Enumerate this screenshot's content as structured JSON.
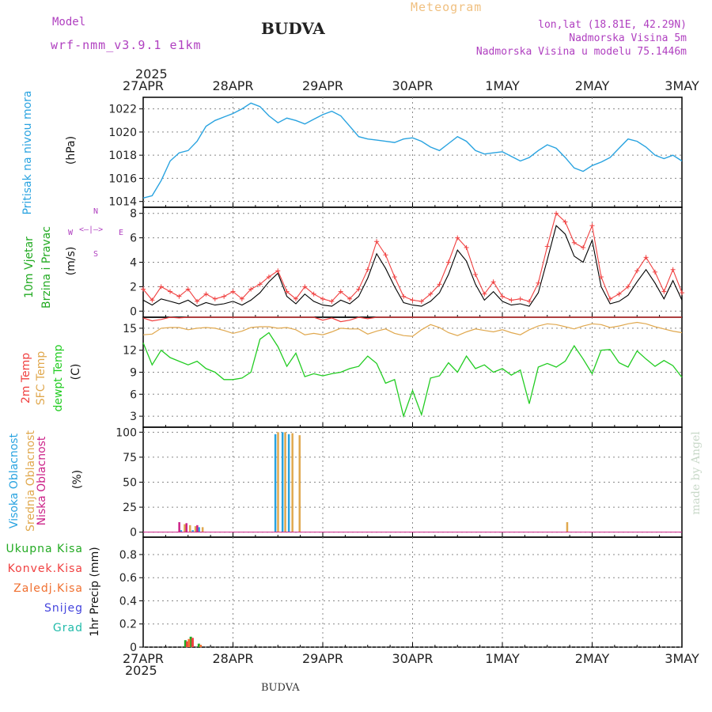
{
  "header": {
    "model_label": "Model",
    "model_name": "wrf-nmm_v3.9.1 e1km",
    "station": "BUDVA",
    "meteogram_label": "Meteogram",
    "coords": "lon,lat (18.81E, 42.29N)",
    "elevation": "Nadmorska Visina 5m",
    "model_elevation": "Nadmorska Visina u modelu 75.1446m",
    "footer_station": "BUDVA",
    "credit": "made by Angel"
  },
  "colors": {
    "pressure": "#29a3e0",
    "temp2m": "#f04040",
    "sfc_temp": "#e0a84e",
    "dewpt": "#22cc22",
    "wind_label": "#22aa22",
    "wind_speed": "#000000",
    "wind_gust": "#f04040",
    "cloud_high": "#29a3e0",
    "cloud_mid": "#e0a84e",
    "cloud_low": "#cc2288",
    "model_text": "#b040c0",
    "meteogram_text": "#f0c080"
  },
  "axes": {
    "top_year": "2025",
    "bottom_year": "2025",
    "dates": [
      "27APR",
      "28APR",
      "29APR",
      "30APR",
      "1MAY",
      "2MAY",
      "3MAY"
    ]
  },
  "chart_data": [
    {
      "type": "line",
      "panel": "pressure",
      "label_left": "Pritisak na nivou mora",
      "ylabel": "(hPa)",
      "ylim": [
        1013.5,
        1023
      ],
      "yticks": [
        1014,
        1016,
        1018,
        1020,
        1022
      ],
      "x_days": [
        0,
        0.1,
        0.2,
        0.3,
        0.4,
        0.5,
        0.6,
        0.7,
        0.8,
        0.9,
        1.0,
        1.1,
        1.2,
        1.3,
        1.4,
        1.5,
        1.6,
        1.7,
        1.8,
        1.9,
        2.0,
        2.1,
        2.2,
        2.3,
        2.4,
        2.5,
        2.6,
        2.7,
        2.8,
        2.9,
        3.0,
        3.1,
        3.2,
        3.3,
        3.4,
        3.5,
        3.6,
        3.7,
        3.8,
        3.9,
        4.0,
        4.1,
        4.2,
        4.3,
        4.4,
        4.5,
        4.6,
        4.7,
        4.8,
        4.9,
        5.0,
        5.1,
        5.2,
        5.3,
        5.4,
        5.5,
        5.6,
        5.7,
        5.8,
        5.9,
        6.0
      ],
      "series": [
        {
          "values": [
            1014.3,
            1014.5,
            1015.8,
            1017.5,
            1018.2,
            1018.4,
            1019.2,
            1020.5,
            1021.0,
            1021.3,
            1021.6,
            1022.0,
            1022.5,
            1022.2,
            1021.4,
            1020.8,
            1021.2,
            1021.0,
            1020.7,
            1021.1,
            1021.5,
            1021.8,
            1021.4,
            1020.5,
            1019.6,
            1019.4,
            1019.3,
            1019.2,
            1019.1,
            1019.4,
            1019.5,
            1019.2,
            1018.7,
            1018.4,
            1019.0,
            1019.6,
            1019.2,
            1018.4,
            1018.1,
            1018.2,
            1018.3,
            1017.9,
            1017.5,
            1017.8,
            1018.4,
            1018.9,
            1018.6,
            1017.8,
            1016.9,
            1016.6,
            1017.1,
            1017.4,
            1017.8,
            1018.6,
            1019.4,
            1019.2,
            1018.7,
            1018.0,
            1017.7,
            1018.0,
            1017.5
          ]
        }
      ]
    },
    {
      "type": "line",
      "panel": "wind",
      "label_left_1": "10m Vjetar",
      "label_left_2": "Brzina i Pravac",
      "ylabel": "(m/s)",
      "compass_n": "N",
      "compass_e": "E",
      "compass_w": "W",
      "compass_s": "S",
      "ylim": [
        -0.5,
        8.5
      ],
      "yticks": [
        0,
        2,
        4,
        6,
        8
      ],
      "x_days": [
        0,
        0.1,
        0.2,
        0.3,
        0.4,
        0.5,
        0.6,
        0.7,
        0.8,
        0.9,
        1.0,
        1.1,
        1.2,
        1.3,
        1.4,
        1.5,
        1.6,
        1.7,
        1.8,
        1.9,
        2.0,
        2.1,
        2.2,
        2.3,
        2.4,
        2.5,
        2.6,
        2.7,
        2.8,
        2.9,
        3.0,
        3.1,
        3.2,
        3.3,
        3.4,
        3.5,
        3.6,
        3.7,
        3.8,
        3.9,
        4.0,
        4.1,
        4.2,
        4.3,
        4.4,
        4.5,
        4.6,
        4.7,
        4.8,
        4.9,
        5.0,
        5.1,
        5.2,
        5.3,
        5.4,
        5.5,
        5.6,
        5.7,
        5.8,
        5.9,
        6.0
      ],
      "series": [
        {
          "name": "speed",
          "values": [
            0.9,
            0.5,
            1.0,
            0.8,
            0.6,
            0.9,
            0.4,
            0.7,
            0.5,
            0.6,
            0.8,
            0.5,
            0.9,
            1.5,
            2.4,
            3.1,
            1.2,
            0.6,
            1.4,
            0.8,
            0.5,
            0.4,
            0.9,
            0.6,
            1.2,
            2.7,
            4.7,
            3.5,
            2.0,
            0.7,
            0.5,
            0.4,
            0.8,
            1.5,
            3.0,
            5.0,
            4.1,
            2.2,
            0.9,
            1.6,
            0.8,
            0.5,
            0.6,
            0.4,
            1.5,
            4.2,
            7.0,
            6.3,
            4.5,
            4.0,
            5.8,
            2.0,
            0.6,
            0.8,
            1.3,
            2.4,
            3.4,
            2.3,
            1.0,
            2.5,
            0.9
          ]
        },
        {
          "name": "gust",
          "values": [
            1.8,
            0.9,
            2.0,
            1.6,
            1.2,
            1.8,
            0.8,
            1.4,
            1.0,
            1.2,
            1.6,
            1.0,
            1.8,
            2.2,
            2.8,
            3.3,
            1.6,
            1.0,
            2.0,
            1.4,
            1.0,
            0.8,
            1.6,
            1.0,
            1.8,
            3.4,
            5.7,
            4.6,
            2.8,
            1.2,
            0.9,
            0.8,
            1.4,
            2.2,
            4.0,
            6.0,
            5.2,
            3.0,
            1.4,
            2.4,
            1.2,
            0.9,
            1.0,
            0.8,
            2.3,
            5.3,
            8.0,
            7.3,
            5.6,
            5.2,
            7.0,
            2.8,
            1.0,
            1.4,
            2.0,
            3.3,
            4.4,
            3.2,
            1.6,
            3.4,
            1.5
          ]
        }
      ]
    },
    {
      "type": "line",
      "panel": "temperature",
      "label_left_1": "2m Temp",
      "label_left_2": "SFC Temp",
      "label_left_3": "dewpt Temp",
      "ylabel": "(C)",
      "ylim": [
        1.5,
        16.5
      ],
      "yticks": [
        3,
        6,
        9,
        12,
        15
      ],
      "x_days": [
        0,
        0.1,
        0.2,
        0.3,
        0.4,
        0.5,
        0.6,
        0.7,
        0.8,
        0.9,
        1.0,
        1.1,
        1.2,
        1.3,
        1.4,
        1.5,
        1.6,
        1.7,
        1.8,
        1.9,
        2.0,
        2.1,
        2.2,
        2.3,
        2.4,
        2.5,
        2.6,
        2.7,
        2.8,
        2.9,
        3.0,
        3.1,
        3.2,
        3.3,
        3.4,
        3.5,
        3.6,
        3.7,
        3.8,
        3.9,
        4.0,
        4.1,
        4.2,
        4.3,
        4.4,
        4.5,
        4.6,
        4.7,
        4.8,
        4.9,
        5.0,
        5.1,
        5.2,
        5.3,
        5.4,
        5.5,
        5.6,
        5.7,
        5.8,
        5.9,
        6.0
      ],
      "series": [
        {
          "name": "2m Temp",
          "values": [
            16.4,
            16.0,
            16.2,
            16.6,
            16.4,
            16.6,
            17,
            17,
            17,
            17,
            17,
            17,
            17,
            17,
            17,
            17,
            17,
            17,
            17,
            16.5,
            16.1,
            16.4,
            15.9,
            16.1,
            16.6,
            16.3,
            17,
            17,
            17,
            17,
            17,
            17,
            17,
            17,
            17,
            17,
            17,
            17,
            17,
            17,
            17,
            17,
            17,
            17,
            17,
            17,
            17,
            17,
            17,
            17,
            17,
            17,
            17,
            17,
            17,
            17,
            17,
            17,
            17,
            17,
            17
          ]
        },
        {
          "name": "SFC Temp",
          "values": [
            14.1,
            14.2,
            15.0,
            15.1,
            15.1,
            14.8,
            15.0,
            15.1,
            15.0,
            14.7,
            14.3,
            14.6,
            15.1,
            15.2,
            15.2,
            15.0,
            15.1,
            14.8,
            14.1,
            14.3,
            14.1,
            14.5,
            15.0,
            14.9,
            14.9,
            14.2,
            14.6,
            14.9,
            14.3,
            14.0,
            13.9,
            14.8,
            15.5,
            15.1,
            14.4,
            14.0,
            14.5,
            14.9,
            14.7,
            14.5,
            14.8,
            14.4,
            14.1,
            14.8,
            15.3,
            15.6,
            15.5,
            15.2,
            14.9,
            15.3,
            15.6,
            15.5,
            15.1,
            15.3,
            15.6,
            15.8,
            15.6,
            15.2,
            14.9,
            14.6,
            14.4
          ]
        },
        {
          "name": "dewpt Temp",
          "values": [
            13.0,
            10.0,
            12.0,
            11.0,
            10.5,
            10.0,
            10.5,
            9.5,
            9.0,
            8.0,
            8.0,
            8.2,
            9.0,
            13.5,
            14.4,
            12.5,
            9.8,
            11.6,
            8.4,
            8.8,
            8.5,
            8.8,
            9.0,
            9.5,
            9.8,
            11.2,
            10.2,
            7.5,
            8.0,
            3.0,
            6.5,
            3.2,
            8.2,
            8.5,
            10.3,
            9.0,
            11.2,
            9.5,
            10.0,
            9.0,
            9.5,
            8.6,
            9.3,
            4.7,
            9.7,
            10.2,
            9.7,
            10.5,
            12.6,
            10.8,
            8.8,
            12.0,
            12.1,
            10.3,
            9.7,
            11.9,
            10.8,
            9.8,
            10.6,
            9.9,
            8.3
          ]
        }
      ]
    },
    {
      "type": "bar",
      "panel": "cloud",
      "label_left_1": "Visoka Oblacnost",
      "label_left_2": "Srednja Oblacnost",
      "label_left_3": "Niska Oblacnost",
      "ylabel": "(%)",
      "ylim": [
        -5,
        105
      ],
      "yticks": [
        0,
        25,
        50,
        75,
        100
      ],
      "series": [
        {
          "name": "Visoka Oblacnost",
          "x_days": [
            0.42,
            0.55,
            0.62,
            1.47,
            1.55,
            1.62,
            1.7
          ],
          "values": [
            2,
            2,
            5,
            98,
            100,
            98,
            0
          ]
        },
        {
          "name": "Srednja Oblacnost",
          "x_days": [
            0.46,
            0.52,
            0.58,
            0.66,
            1.5,
            1.58,
            1.66,
            1.74,
            4.72
          ],
          "values": [
            8,
            7,
            6,
            5,
            100,
            100,
            99,
            97,
            10
          ]
        },
        {
          "name": "Niska Oblacnost",
          "x_days": [
            0.4,
            0.48,
            0.6
          ],
          "values": [
            10,
            9,
            7
          ]
        }
      ]
    },
    {
      "type": "bar",
      "panel": "precip",
      "label_left_1": "Ukupna Kisa",
      "label_left_2": "Konvek.Kisa",
      "label_left_3": "Zaledj.Kisa",
      "label_left_4": "Snijeg",
      "label_left_5": "Grad",
      "ylabel": "1hr Precip (mm)",
      "ylim": [
        0,
        0.95
      ],
      "yticks": [
        0,
        0.2,
        0.4,
        0.6,
        0.8
      ],
      "series": [
        {
          "name": "Ukupna Kisa",
          "x_days": [
            0.47,
            0.53,
            0.62
          ],
          "values": [
            0.06,
            0.09,
            0.03
          ]
        },
        {
          "name": "Konvek.Kisa",
          "x_days": [
            0.49,
            0.55
          ],
          "values": [
            0.05,
            0.08
          ]
        },
        {
          "name": "Zaledj.Kisa",
          "x_days": [
            0.51,
            0.64
          ],
          "values": [
            0.07,
            0.02
          ]
        }
      ]
    }
  ]
}
